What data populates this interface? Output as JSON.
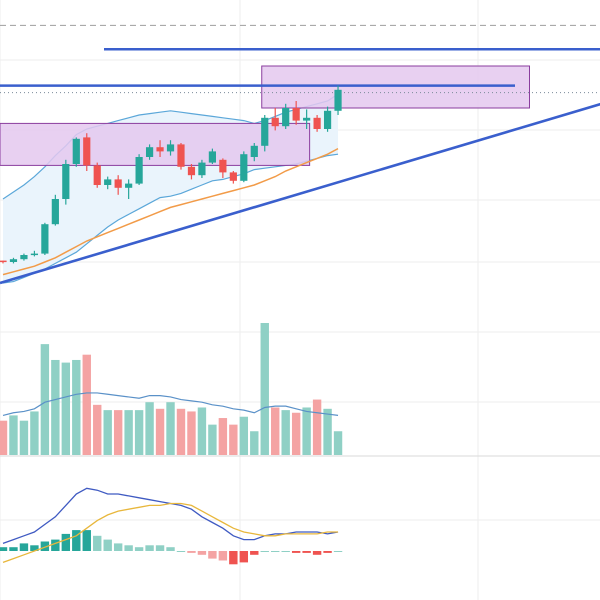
{
  "colors": {
    "up": "#26a69a",
    "up_volume": "#8fd0c5",
    "down": "#ef5350",
    "down_volume": "#f4a3a3",
    "trendline": "#3a5fcd",
    "box_fill": "#e4c8ef",
    "box_stroke": "#8a3d9e",
    "bb_line": "#5ba7d9",
    "bb_fill": "#eaf4fc",
    "ma_orange": "#f29b48",
    "macd_line": "#3f5ac2",
    "signal_line": "#e8b73c",
    "vol_ma": "#5a91c8",
    "grid": "#eeeeee",
    "dashed": "#9e9e9e",
    "last_price": "#7a8a99"
  },
  "chart_data": {
    "type": "candlestick",
    "candles": [
      {
        "o": 46,
        "h": 46,
        "l": 44,
        "c": 45
      },
      {
        "o": 45,
        "h": 48,
        "l": 44,
        "c": 47
      },
      {
        "o": 47,
        "h": 51,
        "l": 46,
        "c": 50
      },
      {
        "o": 50,
        "h": 53,
        "l": 49,
        "c": 51
      },
      {
        "o": 51,
        "h": 73,
        "l": 50,
        "c": 72
      },
      {
        "o": 72,
        "h": 93,
        "l": 71,
        "c": 90
      },
      {
        "o": 90,
        "h": 118,
        "l": 86,
        "c": 115
      },
      {
        "o": 115,
        "h": 134,
        "l": 113,
        "c": 133
      },
      {
        "o": 134,
        "h": 137,
        "l": 110,
        "c": 114
      },
      {
        "o": 114,
        "h": 116,
        "l": 98,
        "c": 100
      },
      {
        "o": 100,
        "h": 106,
        "l": 97,
        "c": 104
      },
      {
        "o": 104,
        "h": 107,
        "l": 93,
        "c": 98
      },
      {
        "o": 98,
        "h": 104,
        "l": 90,
        "c": 101
      },
      {
        "o": 101,
        "h": 122,
        "l": 100,
        "c": 120
      },
      {
        "o": 120,
        "h": 129,
        "l": 118,
        "c": 127
      },
      {
        "o": 127,
        "h": 132,
        "l": 120,
        "c": 124
      },
      {
        "o": 124,
        "h": 132,
        "l": 121,
        "c": 129
      },
      {
        "o": 129,
        "h": 130,
        "l": 111,
        "c": 113
      },
      {
        "o": 113,
        "h": 115,
        "l": 104,
        "c": 107
      },
      {
        "o": 107,
        "h": 118,
        "l": 105,
        "c": 116
      },
      {
        "o": 116,
        "h": 126,
        "l": 115,
        "c": 124
      },
      {
        "o": 118,
        "h": 119,
        "l": 105,
        "c": 109
      },
      {
        "o": 109,
        "h": 110,
        "l": 101,
        "c": 103
      },
      {
        "o": 103,
        "h": 124,
        "l": 102,
        "c": 122
      },
      {
        "o": 120,
        "h": 130,
        "l": 117,
        "c": 128
      },
      {
        "o": 128,
        "h": 150,
        "l": 124,
        "c": 148
      },
      {
        "o": 148,
        "h": 155,
        "l": 139,
        "c": 142
      },
      {
        "o": 142,
        "h": 158,
        "l": 140,
        "c": 155
      },
      {
        "o": 155,
        "h": 160,
        "l": 143,
        "c": 146
      },
      {
        "o": 146,
        "h": 154,
        "l": 140,
        "c": 148
      },
      {
        "o": 148,
        "h": 150,
        "l": 138,
        "c": 140
      },
      {
        "o": 140,
        "h": 156,
        "l": 138,
        "c": 153
      },
      {
        "o": 153,
        "h": 171,
        "l": 150,
        "c": 168
      }
    ],
    "volume": [
      26,
      30,
      26,
      33,
      84,
      72,
      70,
      72,
      76,
      38,
      34,
      34,
      34,
      34,
      40,
      35,
      40,
      35,
      33,
      36,
      23,
      28,
      23,
      29,
      18,
      100,
      36,
      34,
      32,
      36,
      42,
      35,
      18
    ],
    "volume_ma": [
      30,
      32,
      33,
      35,
      40,
      42,
      44,
      46,
      47,
      47,
      46,
      45,
      44,
      43,
      45,
      45,
      44,
      42,
      41,
      40,
      38,
      37,
      35,
      34,
      32,
      36,
      37,
      37,
      35,
      33,
      32,
      31,
      30
    ],
    "bollinger_mid": [
      60,
      63,
      67,
      71,
      76,
      82,
      88,
      94,
      99,
      103,
      106,
      109,
      112,
      115,
      118,
      121,
      122,
      123,
      124,
      125,
      126,
      126,
      127,
      127,
      128,
      129,
      131,
      133,
      135,
      137,
      139,
      141,
      144
    ],
    "bollinger_upper": [
      90,
      95,
      100,
      106,
      113,
      121,
      128,
      136,
      140,
      142,
      144,
      146,
      148,
      150,
      151,
      152,
      153,
      152,
      151,
      150,
      149,
      148,
      147,
      146,
      144,
      146,
      149,
      152,
      154,
      156,
      158,
      160,
      165
    ],
    "bollinger_lower": [
      30,
      31,
      34,
      37,
      40,
      44,
      48,
      52,
      58,
      64,
      70,
      75,
      79,
      83,
      87,
      91,
      92,
      94,
      97,
      100,
      103,
      104,
      106,
      108,
      111,
      112,
      113,
      114,
      115,
      117,
      119,
      121,
      122
    ],
    "ma_orange": [
      36,
      38,
      40,
      42,
      45,
      48,
      52,
      56,
      60,
      63,
      66,
      69,
      72,
      75,
      78,
      81,
      84,
      86,
      88,
      90,
      92,
      94,
      96,
      98,
      100,
      103,
      106,
      110,
      113,
      116,
      119,
      122,
      126
    ],
    "macd": [
      4,
      6,
      8,
      10,
      14,
      18,
      24,
      30,
      33,
      32,
      30,
      30,
      29,
      28,
      27,
      26,
      25,
      24,
      22,
      18,
      15,
      12,
      8,
      6,
      6,
      8,
      9,
      9,
      10,
      10,
      10,
      9,
      10
    ],
    "macd_signal": [
      -6,
      -4,
      -2,
      0,
      2,
      4,
      6,
      8,
      12,
      16,
      19,
      21,
      22,
      23,
      24,
      24,
      25,
      25,
      24,
      21,
      18,
      15,
      12,
      10,
      9,
      8,
      8,
      9,
      9,
      9,
      9,
      10,
      10
    ],
    "macd_hist": [
      2,
      2,
      4,
      3,
      5,
      6,
      9,
      11,
      11,
      8,
      6,
      4,
      3,
      2,
      3,
      3,
      2,
      0,
      -1,
      -2,
      -4,
      -5,
      -7,
      -6,
      -2,
      0,
      0,
      0,
      -1,
      -1,
      -2,
      -1,
      0
    ],
    "horizontal_lines": [
      {
        "name": "dashed-level",
        "value": 214,
        "style": "dashed"
      },
      {
        "name": "resistance-upper",
        "value": 197,
        "style": "solid"
      },
      {
        "name": "resistance-lower",
        "value": 171,
        "style": "solid"
      },
      {
        "name": "last-price",
        "value": 166,
        "style": "dotted"
      }
    ],
    "trendlines": [
      {
        "name": "ascending-support",
        "from": {
          "bar": 0,
          "value": 30
        },
        "to": {
          "bar": 69,
          "value": 185
        }
      }
    ],
    "rectangles": [
      {
        "name": "consolidation-box-1",
        "bar_from": 0,
        "bar_to": 29,
        "low": 114,
        "high": 144
      },
      {
        "name": "consolidation-box-2",
        "bar_from": 25,
        "bar_to": 50,
        "low": 155,
        "high": 185
      }
    ],
    "grid": true
  }
}
